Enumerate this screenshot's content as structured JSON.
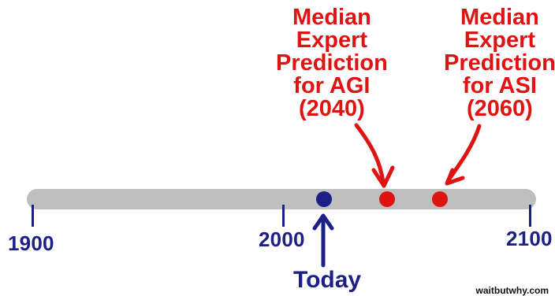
{
  "diagram": {
    "timeline": {
      "labels": {
        "start": "1900",
        "middle": "2000",
        "end": "2100"
      }
    },
    "predictions": {
      "agi": {
        "lines": [
          "Median",
          "Expert",
          "Prediction",
          "for AGI",
          "(2040)"
        ],
        "color": "#e01313"
      },
      "asi": {
        "lines": [
          "Median",
          "Expert",
          "Prediction",
          "for ASI",
          "(2060)"
        ],
        "color": "#e01313"
      }
    },
    "today": {
      "label": "Today",
      "color": "#1b1f86"
    },
    "credit": "waitbutwhy.com"
  }
}
